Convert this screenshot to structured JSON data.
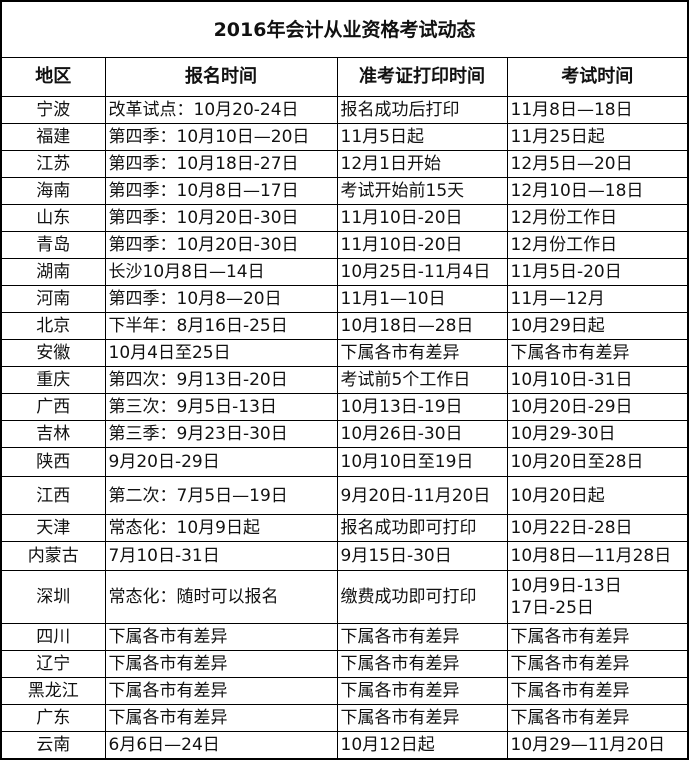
{
  "title": "2016年会计从业资格考试动态",
  "headers": [
    "地区",
    "报名时间",
    "准考证打印时间",
    "考试时间"
  ],
  "rows": [
    [
      "宁波",
      "改革试点：10月20-24日",
      "报名成功后打印",
      "11月8日—18日"
    ],
    [
      "福建",
      "第四季：10月10日—20日",
      "11月5日起",
      "11月25日起"
    ],
    [
      "江苏",
      "第四季：10月18日-27日",
      "12月1日开始",
      "12月5日—20日"
    ],
    [
      "海南",
      "第四季：10月8日—17日",
      "考试开始前15天",
      "12月10日—18日"
    ],
    [
      "山东",
      "第四季：10月20日-30日",
      "11月10日-20日",
      "12月份工作日"
    ],
    [
      "青岛",
      "第四季：10月20日-30日",
      "11月10日-20日",
      "12月份工作日"
    ],
    [
      "湖南",
      "长沙10月8日—14日",
      "10月25日-11月4日",
      "11月5日-20日"
    ],
    [
      "河南",
      "第四季：10月8—20日",
      "11月1—10日",
      "11月—12月"
    ],
    [
      "北京",
      "下半年：8月16日-25日",
      "10月18日—28日",
      "10月29日起"
    ],
    [
      "安徽",
      "10月4日至25日",
      "下属各市有差异",
      "下属各市有差异"
    ],
    [
      "重庆",
      "第四次：9月13日-20日",
      "考试前5个工作日",
      "10月10日-31日"
    ],
    [
      "广西",
      "第三次：9月5日-13日",
      "10月13日-19日",
      "10月20日-29日"
    ],
    [
      "吉林",
      "第三季：9月23日-30日",
      "10月26日-30日",
      "10月29-30日"
    ],
    [
      "陕西",
      "9月20日-29日",
      "10月10日至19日",
      "10月20日至28日"
    ],
    [
      "江西",
      "第二次：7月5日—19日",
      "9月20日-11月20日",
      "10月20日起"
    ],
    [
      "天津",
      "常态化：10月9日起",
      "报名成功即可打印",
      "10月22日-28日"
    ],
    [
      "内蒙古",
      "7月10日-31日",
      "9月15日-30日",
      "10月8日—11月28日"
    ],
    [
      "深圳",
      "常态化：随时可以报名",
      "缴费成功即可打印",
      "10月9日-13日\n17日-25日"
    ],
    [
      "四川",
      "下属各市有差异",
      "下属各市有差异",
      "下属各市有差异"
    ],
    [
      "辽宁",
      "下属各市有差异",
      "下属各市有差异",
      "下属各市有差异"
    ],
    [
      "黑龙江",
      "下属各市有差异",
      "下属各市有差异",
      "下属各市有差异"
    ],
    [
      "广东",
      "下属各市有差异",
      "下属各市有差异",
      "下属各市有差异"
    ],
    [
      "云南",
      "6月6日—24日",
      "10月12日起",
      "10月29—11月20日"
    ]
  ]
}
